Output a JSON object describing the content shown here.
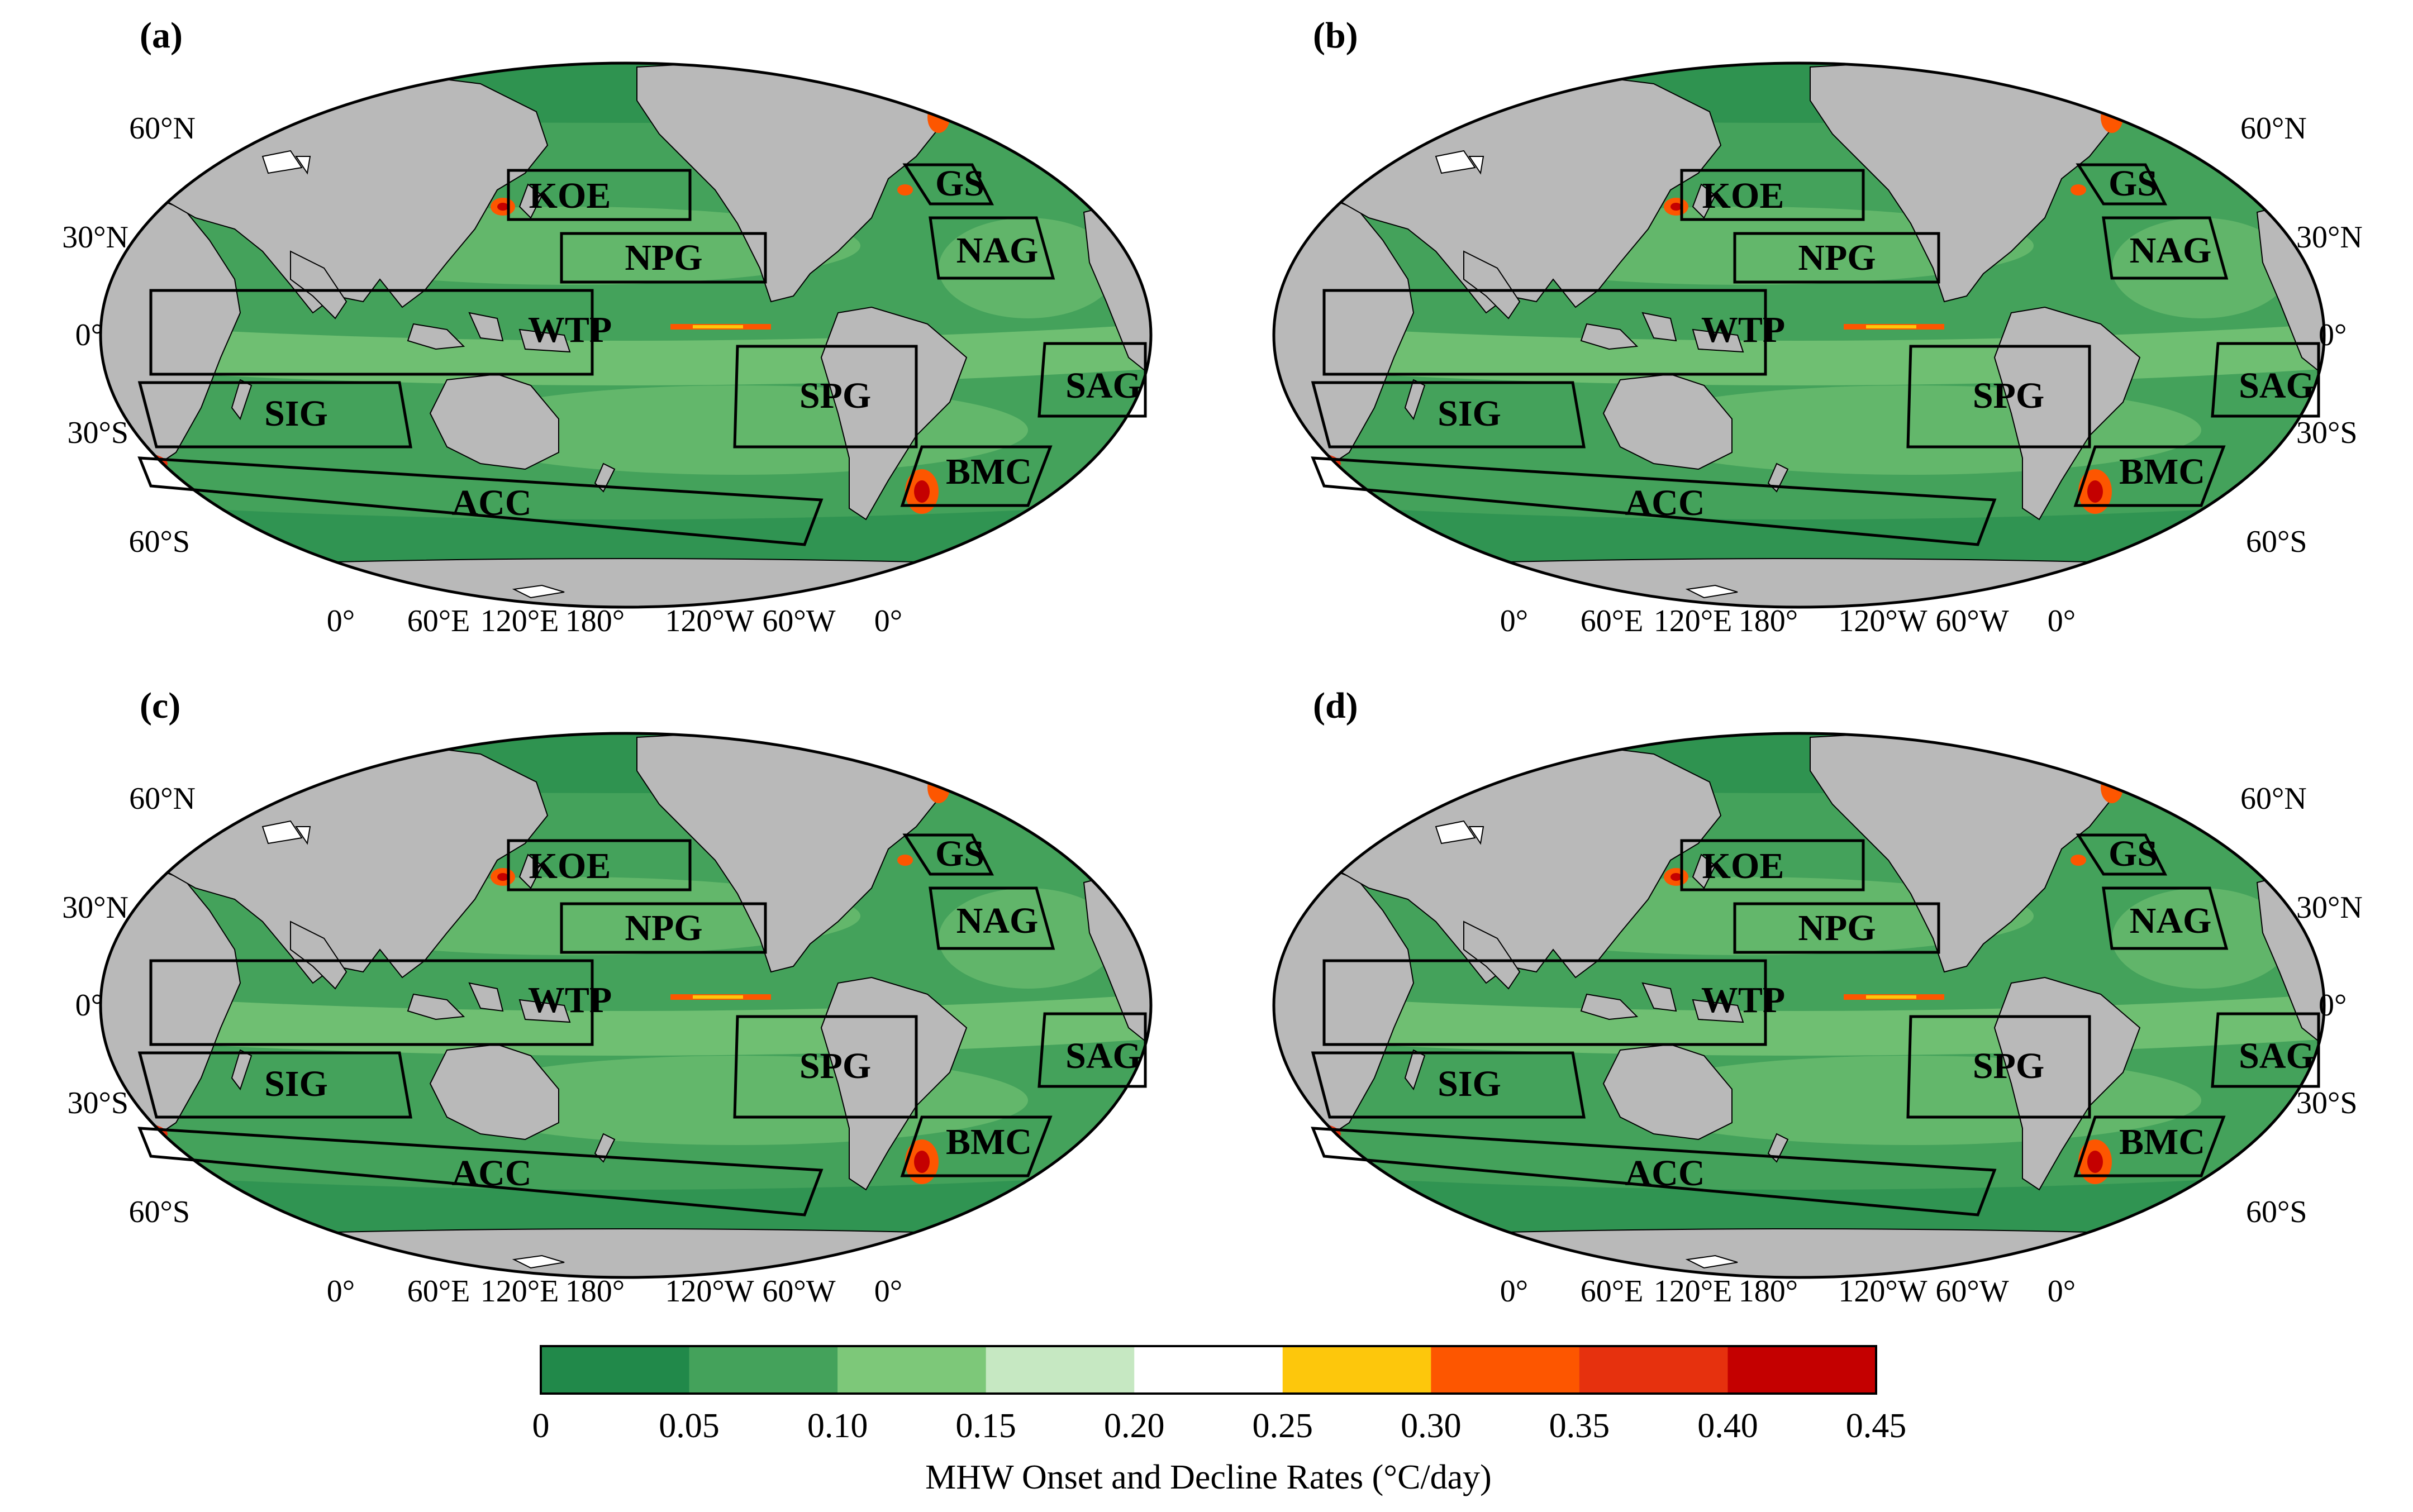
{
  "panels": [
    {
      "label": "(a)",
      "variant": 0
    },
    {
      "label": "(b)",
      "variant": 1
    },
    {
      "label": "(c)",
      "variant": 2
    },
    {
      "label": "(d)",
      "variant": 3
    }
  ],
  "lat_labels": {
    "left": [
      "60°N",
      "30°N",
      "0°",
      "30°S",
      "60°S"
    ],
    "right": [
      "60°N",
      "30°N",
      "0°",
      "30°S",
      "60°S"
    ]
  },
  "lon_labels": [
    "0°",
    "60°E",
    "120°E",
    "180°",
    "120°W",
    "60°W",
    "0°"
  ],
  "regions": [
    {
      "name": "KOE"
    },
    {
      "name": "NPG"
    },
    {
      "name": "WTP"
    },
    {
      "name": "SIG"
    },
    {
      "name": "ACC"
    },
    {
      "name": "SPG"
    },
    {
      "name": "GS"
    },
    {
      "name": "NAG"
    },
    {
      "name": "SAG"
    },
    {
      "name": "BMC"
    }
  ],
  "colorbar": {
    "title": "MHW Onset and Decline Rates (°C/day)",
    "ticks": [
      "0",
      "0.05",
      "0.10",
      "0.15",
      "0.20",
      "0.25",
      "0.30",
      "0.35",
      "0.40",
      "0.45"
    ],
    "colors": [
      "#21894a",
      "#44a25b",
      "#7dc879",
      "#c6e8c2",
      "#ffffff",
      "#fdc70c",
      "#fd5600",
      "#e6310e",
      "#c40000"
    ]
  },
  "colors": {
    "land": "#b9b9b9",
    "ocean_base": "#44a25b",
    "ocean_light": "#7dc879",
    "ocean_dark": "#21894a"
  }
}
